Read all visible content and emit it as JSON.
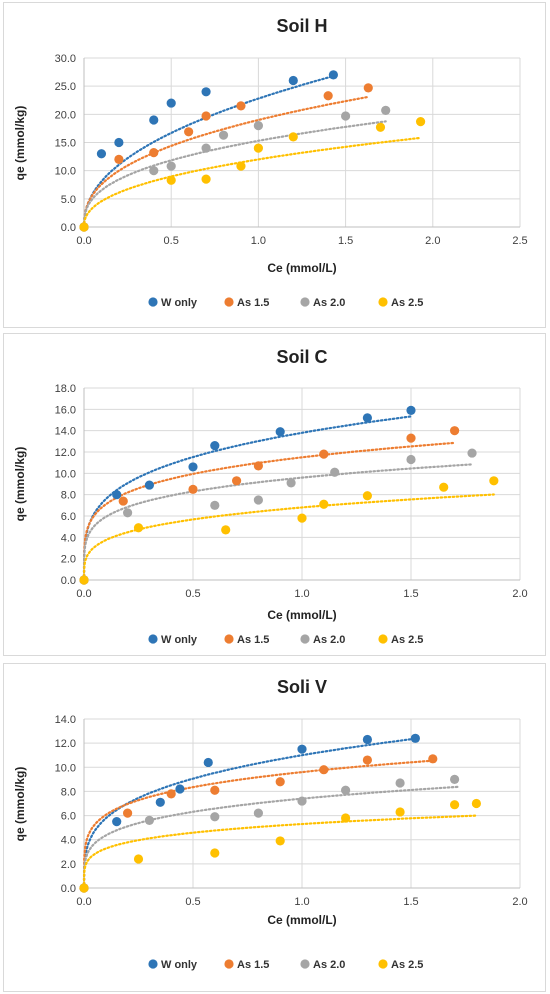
{
  "chart_data": [
    {
      "type": "scatter",
      "title": "Soil H",
      "xlabel": "Ce (mmol/L)",
      "ylabel": "qe (mmol/kg)",
      "xlim": [
        0,
        2.5
      ],
      "ylim": [
        0,
        30
      ],
      "xticks": [
        "0.0",
        "0.5",
        "1.0",
        "1.5",
        "2.0",
        "2.5"
      ],
      "yticks": [
        "0.0",
        "5.0",
        "10.0",
        "15.0",
        "20.0",
        "25.0",
        "30.0"
      ],
      "grid": true,
      "legend_position": "bottom",
      "series": [
        {
          "name": "W only",
          "color": "#2e75b6",
          "x": [
            0,
            0.1,
            0.2,
            0.4,
            0.5,
            0.7,
            1.2,
            1.43
          ],
          "y": [
            0,
            13.0,
            15.0,
            19.0,
            22.0,
            24.0,
            26.0,
            27.0
          ],
          "trend": {
            "k": 22.8,
            "n": 0.45,
            "xmax": 1.43
          }
        },
        {
          "name": "As 1.5",
          "color": "#ed7d31",
          "x": [
            0,
            0.2,
            0.4,
            0.6,
            0.7,
            0.9,
            1.4,
            1.63
          ],
          "y": [
            0,
            12.0,
            13.2,
            16.9,
            19.7,
            21.5,
            23.3,
            24.7
          ],
          "trend": {
            "k": 19.0,
            "n": 0.4,
            "xmax": 1.63
          }
        },
        {
          "name": "As 2.0",
          "color": "#a5a5a5",
          "x": [
            0,
            0.4,
            0.5,
            0.7,
            0.8,
            1.0,
            1.5,
            1.73
          ],
          "y": [
            0,
            10.0,
            10.8,
            14.0,
            16.3,
            18.0,
            19.7,
            20.7
          ],
          "trend": {
            "k": 15.3,
            "n": 0.37,
            "xmax": 1.73
          }
        },
        {
          "name": "As 2.5",
          "color": "#ffc000",
          "x": [
            0,
            0.5,
            0.7,
            0.9,
            1.0,
            1.2,
            1.7,
            1.93
          ],
          "y": [
            0,
            8.3,
            8.5,
            10.8,
            14.0,
            16.0,
            17.7,
            18.7
          ],
          "trend": {
            "k": 12.0,
            "n": 0.42,
            "xmax": 1.93
          }
        }
      ]
    },
    {
      "type": "scatter",
      "title": "Soil C",
      "xlabel": "Ce (mmol/L)",
      "ylabel": "qe (mmol/kg)",
      "xlim": [
        0,
        2.0
      ],
      "ylim": [
        0,
        18
      ],
      "xticks": [
        "0.0",
        "0.5",
        "1.0",
        "1.5",
        "2.0"
      ],
      "yticks": [
        "0.0",
        "2.0",
        "4.0",
        "6.0",
        "8.0",
        "10.0",
        "12.0",
        "14.0",
        "16.0",
        "18.0"
      ],
      "grid": true,
      "legend_position": "bottom",
      "series": [
        {
          "name": "W only",
          "color": "#2e75b6",
          "x": [
            0,
            0.15,
            0.3,
            0.5,
            0.6,
            0.9,
            1.3,
            1.5
          ],
          "y": [
            0,
            8.0,
            8.9,
            10.6,
            12.6,
            13.9,
            15.2,
            15.9
          ],
          "trend": {
            "k": 13.8,
            "n": 0.26,
            "xmax": 1.5
          }
        },
        {
          "name": "As 1.5",
          "color": "#ed7d31",
          "x": [
            0,
            0.18,
            0.5,
            0.7,
            0.8,
            1.1,
            1.5,
            1.7
          ],
          "y": [
            0,
            7.4,
            8.5,
            9.3,
            10.7,
            11.8,
            13.3,
            14.0
          ],
          "trend": {
            "k": 11.5,
            "n": 0.21,
            "xmax": 1.7
          }
        },
        {
          "name": "As 2.0",
          "color": "#a5a5a5",
          "x": [
            0,
            0.2,
            0.6,
            0.8,
            0.95,
            1.15,
            1.5,
            1.78
          ],
          "y": [
            0,
            6.3,
            7.0,
            7.5,
            9.1,
            10.1,
            11.3,
            11.9
          ],
          "trend": {
            "k": 9.6,
            "n": 0.21,
            "xmax": 1.78
          }
        },
        {
          "name": "As 2.5",
          "color": "#ffc000",
          "x": [
            0,
            0.25,
            0.65,
            1.0,
            1.1,
            1.3,
            1.65,
            1.88
          ],
          "y": [
            0,
            4.9,
            4.7,
            5.8,
            7.1,
            7.9,
            8.7,
            9.3
          ],
          "trend": {
            "k": 6.8,
            "n": 0.26,
            "xmax": 1.88
          }
        }
      ]
    },
    {
      "type": "scatter",
      "title": "Soli V",
      "xlabel": "Ce (mmol/L)",
      "ylabel": "qe (mmol/kg)",
      "xlim": [
        0,
        2.0
      ],
      "ylim": [
        0,
        14
      ],
      "xticks": [
        "0.0",
        "0.5",
        "1.0",
        "1.5",
        "2.0"
      ],
      "yticks": [
        "0.0",
        "2.0",
        "4.0",
        "6.0",
        "8.0",
        "10.0",
        "12.0",
        "14.0"
      ],
      "grid": true,
      "legend_position": "bottom",
      "series": [
        {
          "name": "W only",
          "color": "#2e75b6",
          "x": [
            0,
            0.15,
            0.35,
            0.44,
            0.57,
            1.0,
            1.3,
            1.52
          ],
          "y": [
            0,
            5.5,
            7.1,
            8.2,
            10.4,
            11.5,
            12.3,
            12.4
          ],
          "trend": {
            "k": 11.0,
            "n": 0.28,
            "xmax": 1.52
          }
        },
        {
          "name": "As 1.5",
          "color": "#ed7d31",
          "x": [
            0,
            0.2,
            0.4,
            0.6,
            0.9,
            1.1,
            1.3,
            1.6
          ],
          "y": [
            0,
            6.2,
            7.8,
            8.1,
            8.8,
            9.8,
            10.6,
            10.7
          ],
          "trend": {
            "k": 9.6,
            "n": 0.2,
            "xmax": 1.6
          }
        },
        {
          "name": "As 2.0",
          "color": "#a5a5a5",
          "x": [
            0,
            0.3,
            0.6,
            0.8,
            1.0,
            1.2,
            1.45,
            1.7
          ],
          "y": [
            0,
            5.6,
            5.9,
            6.2,
            7.2,
            8.1,
            8.7,
            9.0
          ],
          "trend": {
            "k": 7.4,
            "n": 0.23,
            "xmax": 1.72
          }
        },
        {
          "name": "As 2.5",
          "color": "#ffc000",
          "x": [
            0,
            0.25,
            0.6,
            0.9,
            1.2,
            1.45,
            1.7,
            1.8
          ],
          "y": [
            0,
            2.4,
            2.9,
            3.9,
            5.8,
            6.3,
            6.9,
            7.0
          ],
          "trend": {
            "k": 5.3,
            "n": 0.21,
            "xmax": 1.8
          }
        }
      ]
    }
  ]
}
